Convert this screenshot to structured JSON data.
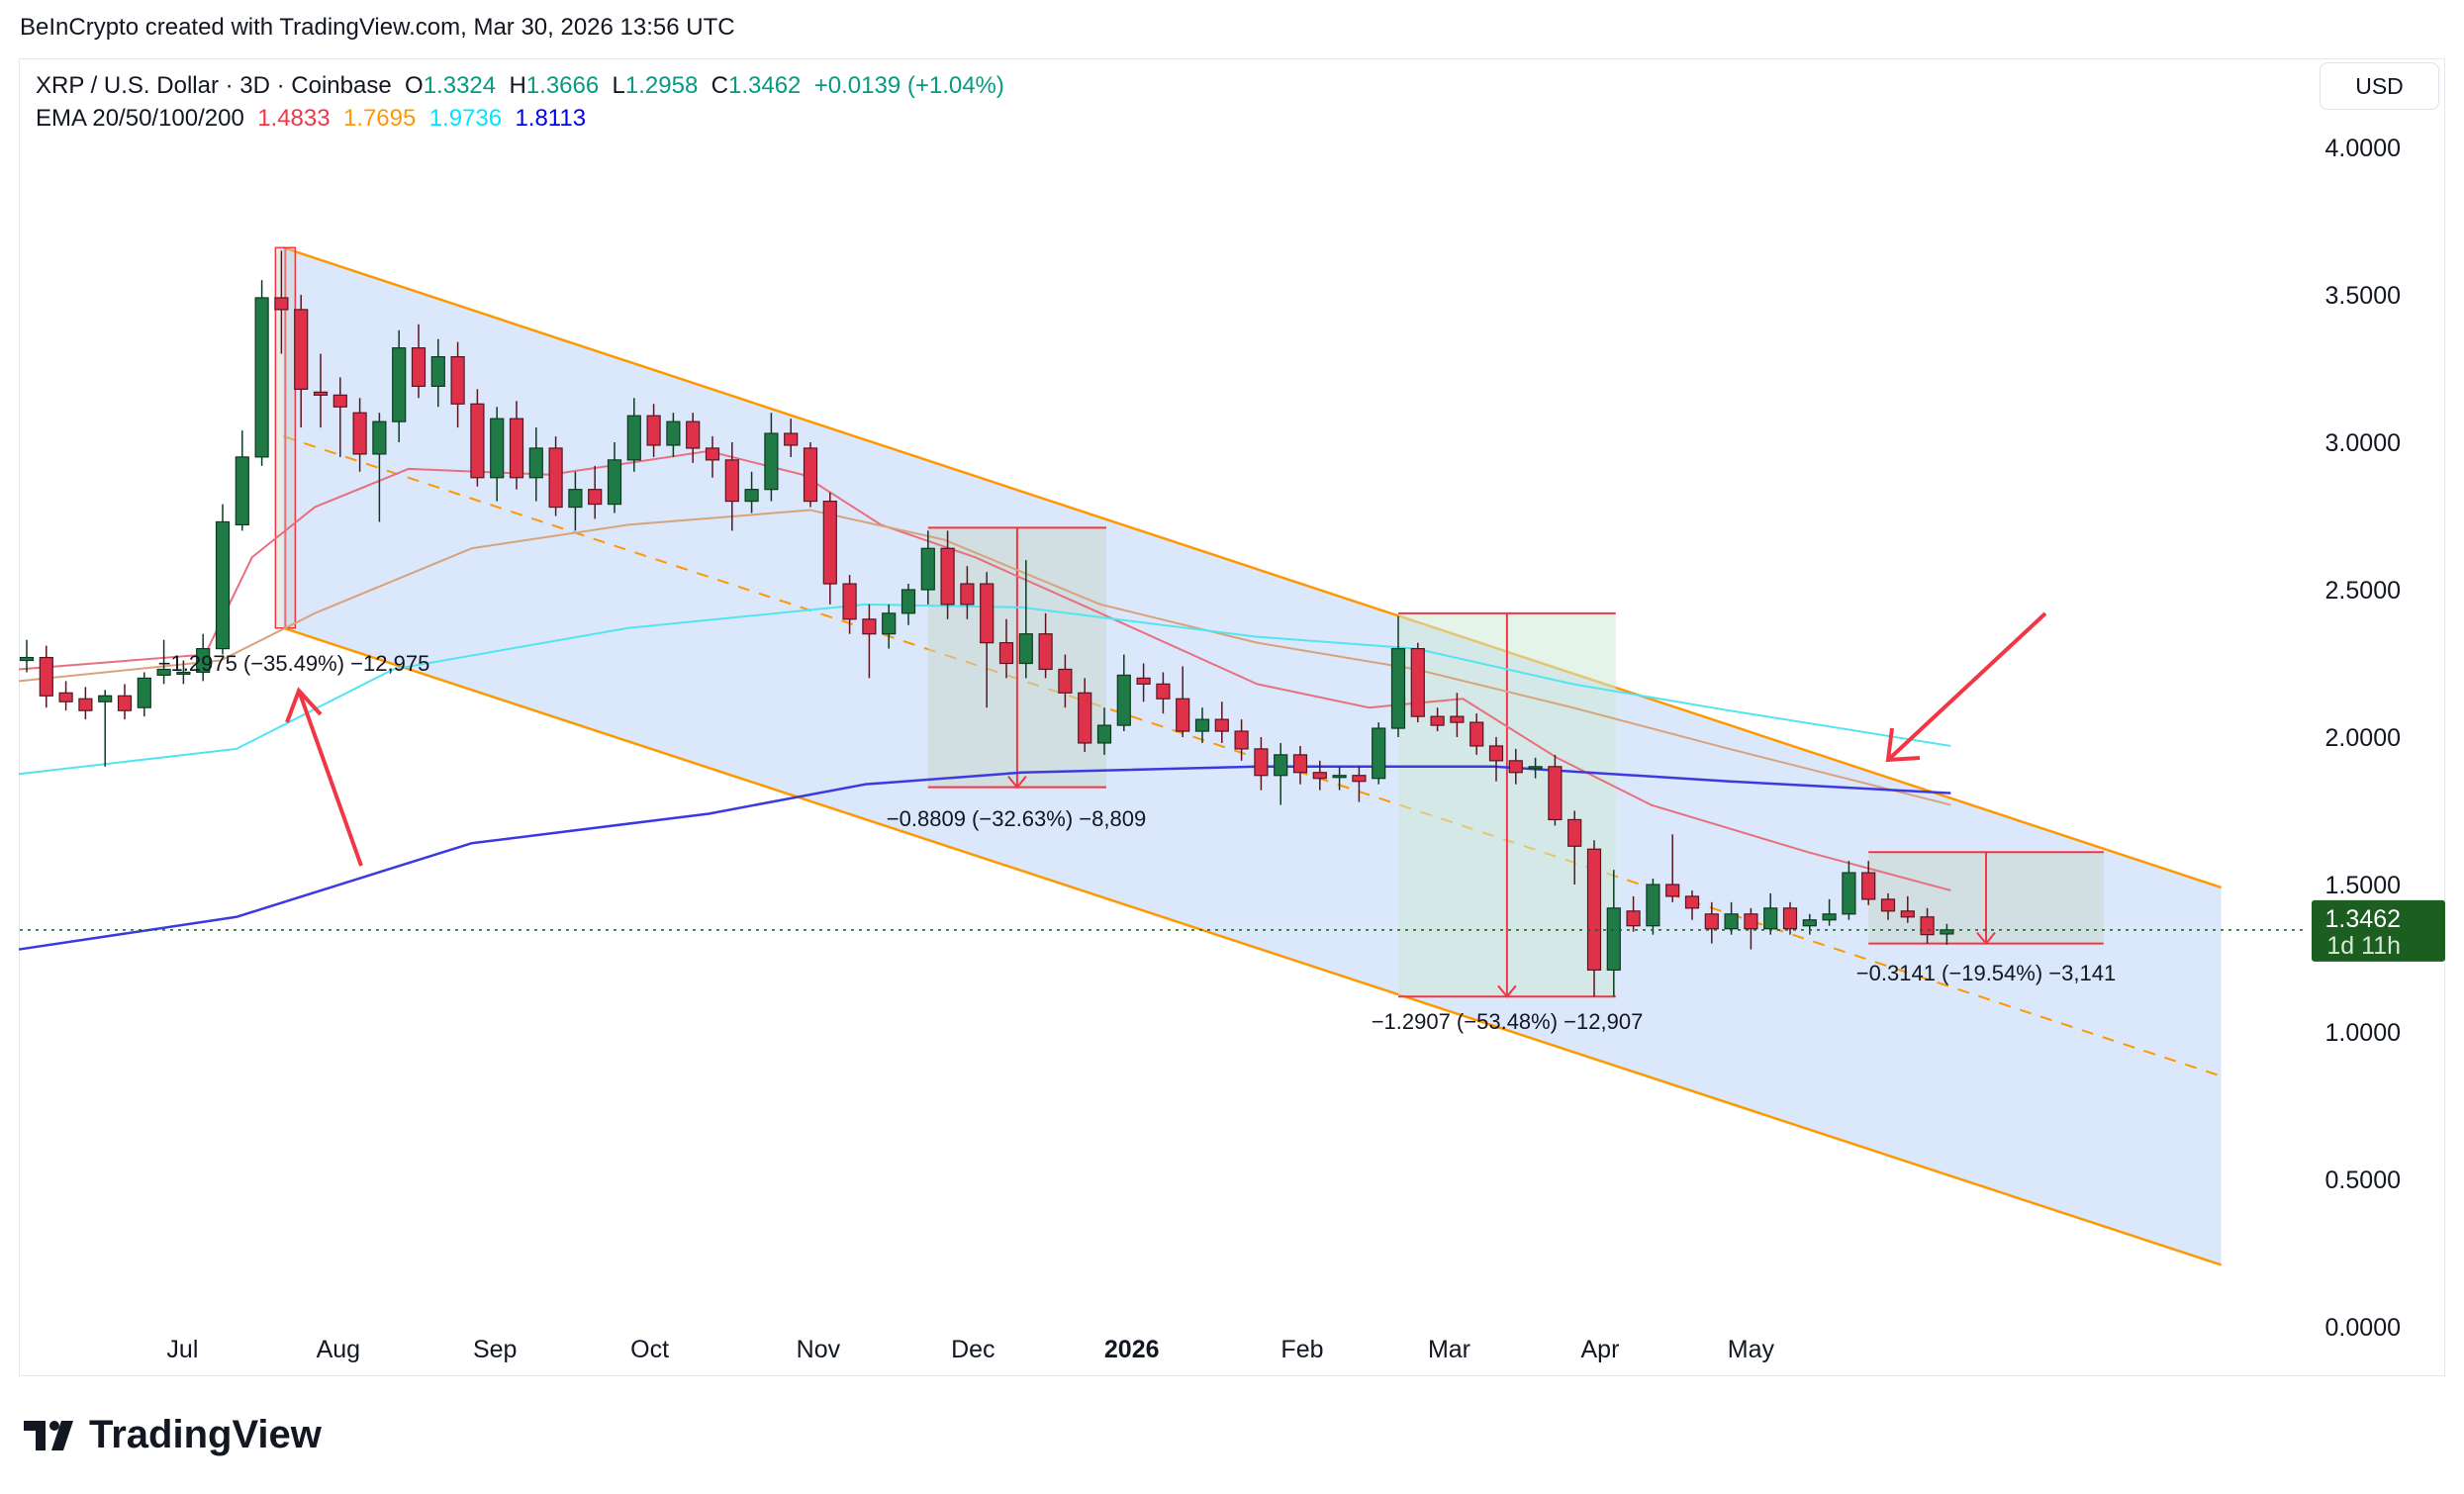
{
  "credit": "BeInCrypto created with TradingView.com, Mar 30, 2026 13:56 UTC",
  "legend": {
    "symbol": "XRP / U.S. Dollar · 3D · Coinbase",
    "o_label": "O",
    "o": "1.3324",
    "h_label": "H",
    "h": "1.3666",
    "l_label": "L",
    "l": "1.2958",
    "c_label": "C",
    "c": "1.3462",
    "change": "+0.0139 (+1.04%)",
    "ema_label": "EMA 20/50/100/200",
    "ema20": "1.4833",
    "ema50": "1.7695",
    "ema100": "1.9736",
    "ema200": "1.8113"
  },
  "currency": "USD",
  "price_tag": {
    "price": "1.3462",
    "countdown": "1d 11h"
  },
  "logo": "TradingView",
  "colors": {
    "up": "#1f7a45",
    "down": "#e0314b",
    "ema20": "#e8707e",
    "ema50": "#d9a27a",
    "ema100": "#52e5f0",
    "ema200": "#3a3ae0",
    "channel": "#ff9800",
    "channel_fill": "#dbe7fa",
    "tag": "#1b5e20"
  },
  "chart_data": {
    "type": "candlestick",
    "title": "XRP / U.S. Dollar · 3D · Coinbase",
    "ylim": [
      0,
      4
    ],
    "y_ticks": [
      "4.0000",
      "3.5000",
      "3.0000",
      "2.5000",
      "2.0000",
      "1.5000",
      "1.0000",
      "0.5000",
      "0.0000"
    ],
    "x_ticks": [
      "Jul",
      "Aug",
      "Sep",
      "Oct",
      "Nov",
      "Dec",
      "2026",
      "Feb",
      "Mar",
      "Apr",
      "May"
    ],
    "candles": [
      [
        2.26,
        2.33,
        2.22,
        2.27
      ],
      [
        2.27,
        2.31,
        2.1,
        2.14
      ],
      [
        2.15,
        2.19,
        2.09,
        2.12
      ],
      [
        2.13,
        2.17,
        2.06,
        2.09
      ],
      [
        2.12,
        2.16,
        1.9,
        2.14
      ],
      [
        2.14,
        2.18,
        2.06,
        2.09
      ],
      [
        2.1,
        2.22,
        2.07,
        2.2
      ],
      [
        2.21,
        2.33,
        2.18,
        2.23
      ],
      [
        2.22,
        2.26,
        2.18,
        2.22
      ],
      [
        2.22,
        2.35,
        2.19,
        2.3
      ],
      [
        2.3,
        2.79,
        2.28,
        2.73
      ],
      [
        2.72,
        3.04,
        2.7,
        2.95
      ],
      [
        2.95,
        3.55,
        2.92,
        3.49
      ],
      [
        3.49,
        3.65,
        3.3,
        3.45
      ],
      [
        3.45,
        3.5,
        3.05,
        3.18
      ],
      [
        3.17,
        3.3,
        3.05,
        3.16
      ],
      [
        3.16,
        3.22,
        2.95,
        3.12
      ],
      [
        3.1,
        3.15,
        2.9,
        2.96
      ],
      [
        2.96,
        3.1,
        2.73,
        3.07
      ],
      [
        3.07,
        3.38,
        3.0,
        3.32
      ],
      [
        3.32,
        3.4,
        3.15,
        3.19
      ],
      [
        3.19,
        3.35,
        3.12,
        3.29
      ],
      [
        3.29,
        3.34,
        3.05,
        3.13
      ],
      [
        3.13,
        3.18,
        2.85,
        2.88
      ],
      [
        2.88,
        3.12,
        2.8,
        3.08
      ],
      [
        3.08,
        3.14,
        2.84,
        2.88
      ],
      [
        2.88,
        3.05,
        2.8,
        2.98
      ],
      [
        2.98,
        3.02,
        2.75,
        2.78
      ],
      [
        2.78,
        2.9,
        2.7,
        2.84
      ],
      [
        2.84,
        2.92,
        2.74,
        2.79
      ],
      [
        2.79,
        3.0,
        2.76,
        2.94
      ],
      [
        2.94,
        3.15,
        2.9,
        3.09
      ],
      [
        3.09,
        3.13,
        2.95,
        2.99
      ],
      [
        2.99,
        3.1,
        2.95,
        3.07
      ],
      [
        3.07,
        3.1,
        2.93,
        2.98
      ],
      [
        2.98,
        3.02,
        2.88,
        2.94
      ],
      [
        2.94,
        3.0,
        2.7,
        2.8
      ],
      [
        2.8,
        2.9,
        2.76,
        2.84
      ],
      [
        2.84,
        3.1,
        2.8,
        3.03
      ],
      [
        3.03,
        3.08,
        2.95,
        2.99
      ],
      [
        2.98,
        3.0,
        2.78,
        2.8
      ],
      [
        2.8,
        2.83,
        2.45,
        2.52
      ],
      [
        2.52,
        2.55,
        2.35,
        2.4
      ],
      [
        2.4,
        2.45,
        2.2,
        2.35
      ],
      [
        2.35,
        2.45,
        2.3,
        2.42
      ],
      [
        2.42,
        2.52,
        2.38,
        2.5
      ],
      [
        2.5,
        2.7,
        2.45,
        2.64
      ],
      [
        2.64,
        2.7,
        2.4,
        2.45
      ],
      [
        2.52,
        2.58,
        2.4,
        2.45
      ],
      [
        2.52,
        2.56,
        2.1,
        2.32
      ],
      [
        2.32,
        2.4,
        2.2,
        2.25
      ],
      [
        2.25,
        2.6,
        2.2,
        2.35
      ],
      [
        2.35,
        2.42,
        2.2,
        2.23
      ],
      [
        2.23,
        2.28,
        2.1,
        2.15
      ],
      [
        2.15,
        2.2,
        1.95,
        1.98
      ],
      [
        1.98,
        2.1,
        1.94,
        2.04
      ],
      [
        2.04,
        2.28,
        2.02,
        2.21
      ],
      [
        2.2,
        2.25,
        2.12,
        2.18
      ],
      [
        2.18,
        2.22,
        2.08,
        2.13
      ],
      [
        2.13,
        2.24,
        2.0,
        2.02
      ],
      [
        2.02,
        2.1,
        1.98,
        2.06
      ],
      [
        2.06,
        2.12,
        1.98,
        2.02
      ],
      [
        2.02,
        2.06,
        1.92,
        1.96
      ],
      [
        1.96,
        2.0,
        1.82,
        1.87
      ],
      [
        1.87,
        1.98,
        1.77,
        1.94
      ],
      [
        1.94,
        1.97,
        1.84,
        1.88
      ],
      [
        1.88,
        1.92,
        1.82,
        1.86
      ],
      [
        1.87,
        1.9,
        1.82,
        1.87
      ],
      [
        1.87,
        1.9,
        1.78,
        1.85
      ],
      [
        1.86,
        2.05,
        1.84,
        2.03
      ],
      [
        2.03,
        2.41,
        2.0,
        2.3
      ],
      [
        2.3,
        2.32,
        2.05,
        2.07
      ],
      [
        2.07,
        2.1,
        2.02,
        2.04
      ],
      [
        2.07,
        2.15,
        2.0,
        2.05
      ],
      [
        2.05,
        2.08,
        1.94,
        1.97
      ],
      [
        1.97,
        2.0,
        1.85,
        1.92
      ],
      [
        1.92,
        1.96,
        1.84,
        1.88
      ],
      [
        1.9,
        1.93,
        1.86,
        1.9
      ],
      [
        1.9,
        1.94,
        1.7,
        1.72
      ],
      [
        1.72,
        1.75,
        1.5,
        1.63
      ],
      [
        1.62,
        1.65,
        1.12,
        1.21
      ],
      [
        1.21,
        1.55,
        1.12,
        1.42
      ],
      [
        1.41,
        1.46,
        1.34,
        1.36
      ],
      [
        1.36,
        1.52,
        1.33,
        1.5
      ],
      [
        1.5,
        1.67,
        1.44,
        1.46
      ],
      [
        1.46,
        1.48,
        1.38,
        1.42
      ],
      [
        1.4,
        1.44,
        1.3,
        1.35
      ],
      [
        1.35,
        1.44,
        1.33,
        1.4
      ],
      [
        1.4,
        1.42,
        1.28,
        1.35
      ],
      [
        1.35,
        1.47,
        1.33,
        1.42
      ],
      [
        1.42,
        1.44,
        1.33,
        1.35
      ],
      [
        1.36,
        1.4,
        1.33,
        1.38
      ],
      [
        1.38,
        1.45,
        1.36,
        1.4
      ],
      [
        1.4,
        1.58,
        1.38,
        1.54
      ],
      [
        1.54,
        1.58,
        1.43,
        1.45
      ],
      [
        1.45,
        1.47,
        1.38,
        1.41
      ],
      [
        1.41,
        1.46,
        1.37,
        1.39
      ],
      [
        1.39,
        1.42,
        1.3,
        1.33
      ],
      [
        1.3324,
        1.3666,
        1.2958,
        1.3462
      ]
    ],
    "ema": [
      {
        "name": "EMA 20",
        "points": [
          [
            -0.4,
            2.23
          ],
          [
            9.1,
            2.28
          ],
          [
            11.5,
            2.61
          ],
          [
            14.7,
            2.78
          ],
          [
            19.5,
            2.91
          ],
          [
            26.7,
            2.89
          ],
          [
            34.8,
            2.97
          ],
          [
            39.6,
            2.89
          ],
          [
            43.6,
            2.72
          ],
          [
            48.4,
            2.61
          ],
          [
            54.8,
            2.42
          ],
          [
            62.8,
            2.18
          ],
          [
            68.5,
            2.1
          ],
          [
            73.3,
            2.13
          ],
          [
            78.1,
            1.93
          ],
          [
            82.9,
            1.77
          ],
          [
            90.9,
            1.61
          ],
          [
            98.2,
            1.48
          ]
        ]
      },
      {
        "name": "EMA 50",
        "points": [
          [
            -0.4,
            2.19
          ],
          [
            9.9,
            2.26
          ],
          [
            14.7,
            2.42
          ],
          [
            22.7,
            2.64
          ],
          [
            30.7,
            2.72
          ],
          [
            40,
            2.77
          ],
          [
            46.8,
            2.67
          ],
          [
            54.8,
            2.45
          ],
          [
            62.8,
            2.32
          ],
          [
            70.9,
            2.23
          ],
          [
            78.9,
            2.1
          ],
          [
            86.9,
            1.96
          ],
          [
            98.2,
            1.77
          ]
        ]
      },
      {
        "name": "EMA 100",
        "points": [
          [
            -0.4,
            1.875
          ],
          [
            10.7,
            1.96
          ],
          [
            18.7,
            2.23
          ],
          [
            30.7,
            2.37
          ],
          [
            42.8,
            2.45
          ],
          [
            50.8,
            2.44
          ],
          [
            62.8,
            2.34
          ],
          [
            70.9,
            2.3
          ],
          [
            78.9,
            2.18
          ],
          [
            86.9,
            2.09
          ],
          [
            98.2,
            1.97
          ]
        ]
      },
      {
        "name": "EMA 200",
        "points": [
          [
            -0.4,
            1.28
          ],
          [
            10.7,
            1.39
          ],
          [
            22.7,
            1.64
          ],
          [
            34.8,
            1.74
          ],
          [
            42.8,
            1.84
          ],
          [
            50.8,
            1.88
          ],
          [
            62.8,
            1.9
          ],
          [
            74.9,
            1.9
          ],
          [
            86.9,
            1.85
          ],
          [
            98.2,
            1.81
          ]
        ]
      }
    ],
    "channel": {
      "upper": [
        [
          13.1,
          3.66
        ],
        [
          112,
          1.49
        ]
      ],
      "lower": [
        [
          13.1,
          2.37
        ],
        [
          112,
          0.21
        ]
      ],
      "mid": [
        [
          13.1,
          3.02
        ],
        [
          112,
          0.85
        ]
      ]
    },
    "measures": [
      {
        "label": "−1.2975 (−35.49%) −12,975",
        "from": [
          13.2,
          3.66
        ],
        "to": [
          13.2,
          2.37
        ]
      },
      {
        "label": "−0.8809 (−32.63%) −8,809",
        "box": [
          46,
          55.1
        ],
        "from": 2.71,
        "to": 1.83
      },
      {
        "label": "−1.2907 (−53.48%) −12,907",
        "box": [
          70,
          81.1
        ],
        "from": 2.42,
        "to": 1.12
      },
      {
        "label": "−0.3141 (−19.54%) −3,141",
        "box": [
          94,
          106
        ],
        "from": 1.61,
        "to": 1.3
      }
    ],
    "last_price": 1.3462
  }
}
